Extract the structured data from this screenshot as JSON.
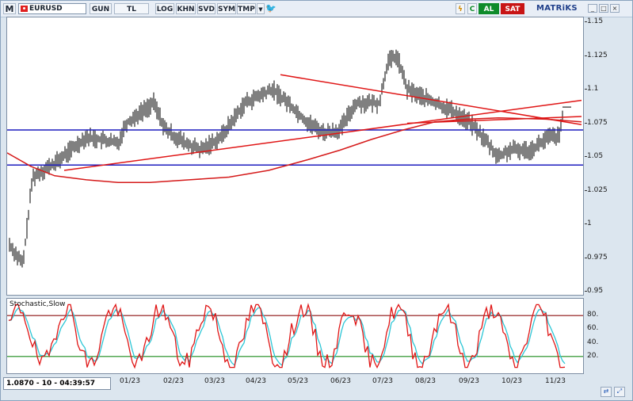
{
  "toolbar": {
    "menu_letter": "M",
    "symbol": "EURUSD",
    "buttons": [
      "GUN",
      "TL",
      "LOG",
      "KHN",
      "SVD",
      "SYM",
      "TMP"
    ],
    "buy_label": "AL",
    "sell_label": "SAT",
    "brand": "MATRiKS",
    "colors": {
      "buy": "#0e8b2a",
      "sell": "#c81515"
    }
  },
  "price_axis": {
    "ticks": [
      "1.15",
      "1.125",
      "1.1",
      "1.075",
      "1.05",
      "1.025",
      "1",
      "0.975",
      "0.95"
    ]
  },
  "oscillator": {
    "title": "Stochastic,Slow",
    "ticks": [
      "80.",
      "60.",
      "40.",
      "20."
    ],
    "colors": {
      "k": "#e01616",
      "d": "#2cc6d6",
      "upper": "#8b1010",
      "lower": "#1a8a1a"
    }
  },
  "date_axis": {
    "labels": [
      "01/23",
      "02/23",
      "03/23",
      "04/23",
      "05/23",
      "06/23",
      "07/23",
      "08/23",
      "09/23",
      "10/23",
      "11/23"
    ]
  },
  "status": {
    "readout": "1.0870 - 10 - 04:39:57"
  },
  "chart_data": {
    "type": "line",
    "title": "",
    "ylim": [
      0.95,
      1.15
    ],
    "horizontal_lines": [
      1.07,
      1.044
    ],
    "stochastic": {
      "ylim": [
        0,
        100
      ],
      "levels": [
        80,
        20
      ]
    },
    "colors": {
      "bars": "#000000",
      "trend": "#e01616",
      "support": "#1c1cbf",
      "moving_average": "#d51a1a"
    }
  }
}
